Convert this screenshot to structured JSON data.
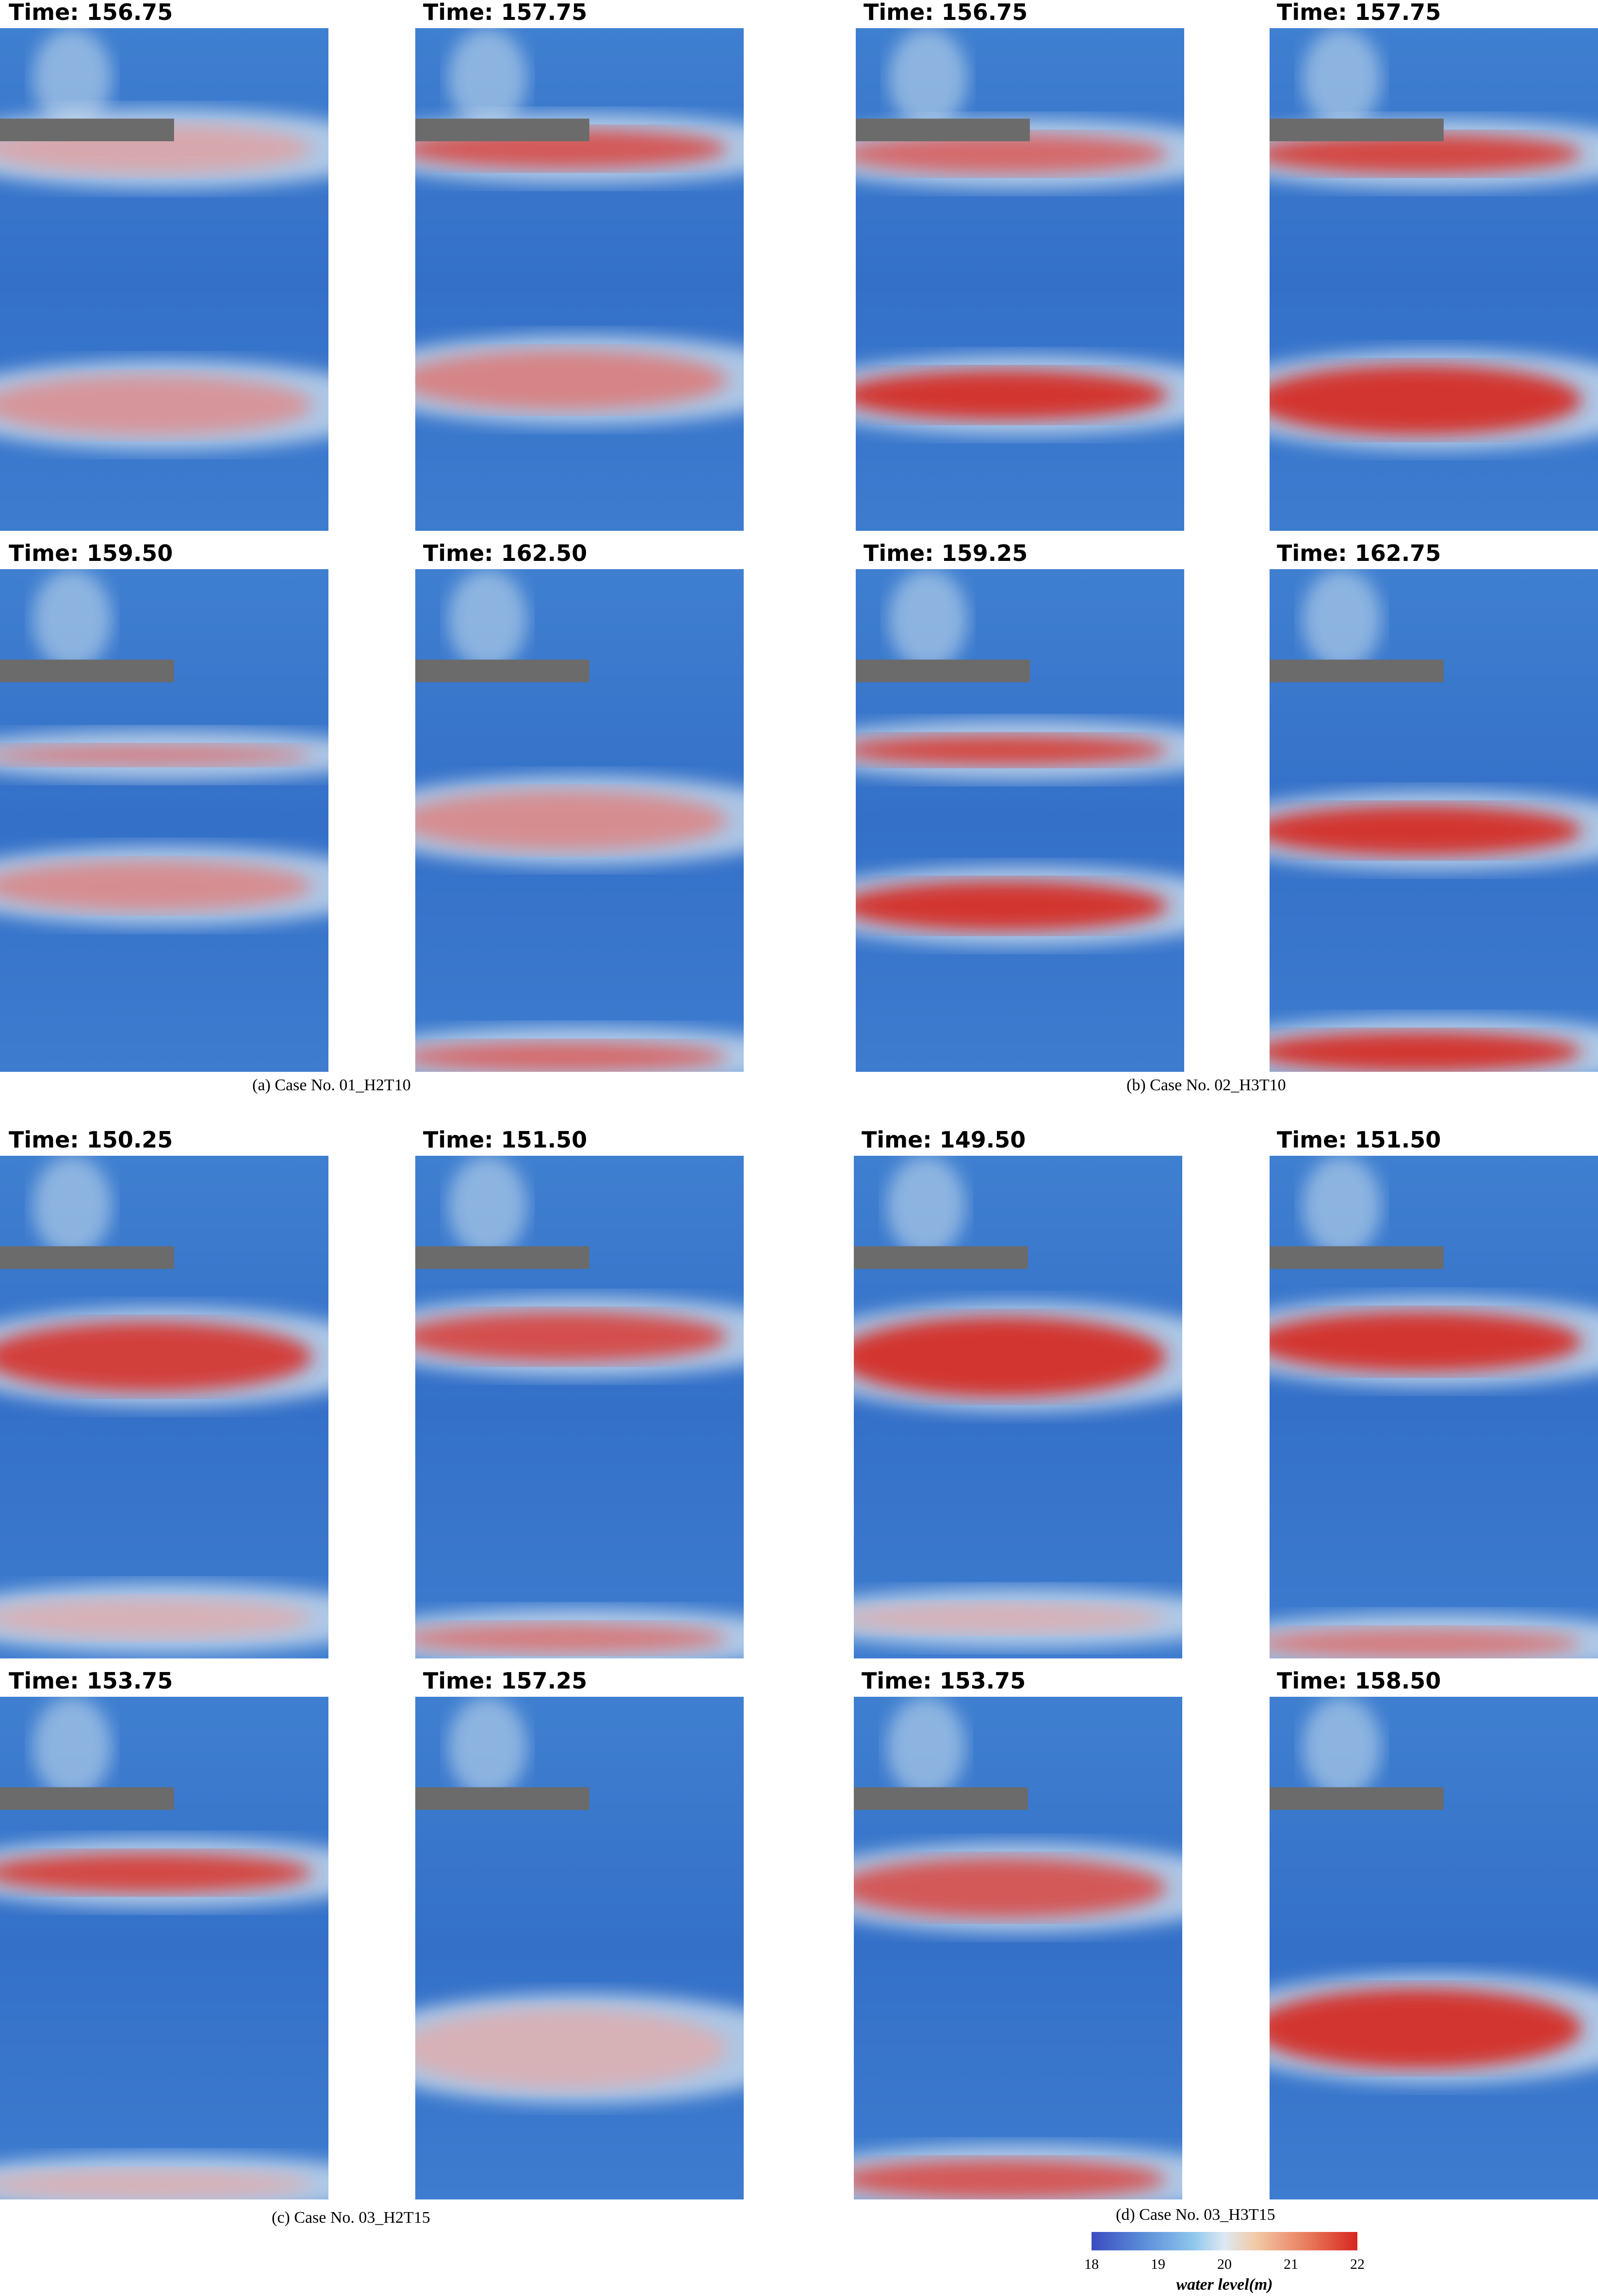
{
  "groups": [
    {
      "caption": "(a)  Case  No.  01_H2T10",
      "panels": [
        {
          "time": "Time: 156.75"
        },
        {
          "time": "Time: 157.75"
        },
        {
          "time": "Time: 159.50"
        },
        {
          "time": "Time: 162.50"
        }
      ]
    },
    {
      "caption": "(b)  Case  No.  02_H3T10",
      "panels": [
        {
          "time": "Time: 156.75"
        },
        {
          "time": "Time: 157.75"
        },
        {
          "time": "Time: 159.25"
        },
        {
          "time": "Time: 162.75"
        }
      ]
    },
    {
      "caption": "(c)  Case  No.  03_H2T15",
      "panels": [
        {
          "time": "Time: 150.25"
        },
        {
          "time": "Time: 151.50"
        },
        {
          "time": "Time: 153.75"
        },
        {
          "time": "Time: 157.25"
        }
      ]
    },
    {
      "caption": "(d)  Case  No.  03_H3T15",
      "panels": [
        {
          "time": "Time: 149.50"
        },
        {
          "time": "Time: 151.50"
        },
        {
          "time": "Time: 153.75"
        },
        {
          "time": "Time: 158.50"
        }
      ]
    }
  ],
  "colorbar": {
    "ticks": [
      "18",
      "19",
      "20",
      "21",
      "22"
    ],
    "title": "water level(m)",
    "colors": [
      "#3b4cc0",
      "#8dc6ec",
      "#dde9f2",
      "#e8785a",
      "#d7261e"
    ]
  }
}
